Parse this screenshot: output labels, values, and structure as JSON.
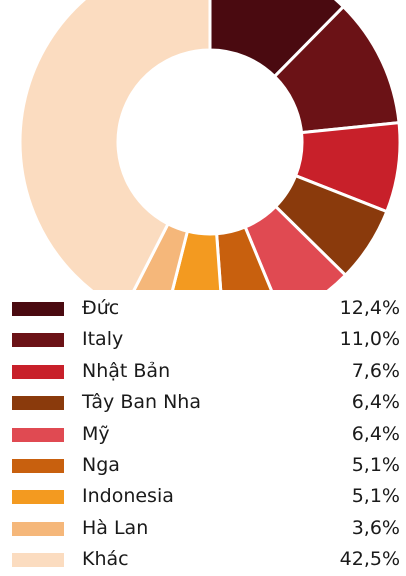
{
  "chart_data": {
    "type": "pie",
    "variant": "donut",
    "title": "",
    "legend_position": "bottom",
    "slices": [
      {
        "label": "Đức",
        "value": 12.4,
        "value_label": "12,4%",
        "color": "#4a0a10"
      },
      {
        "label": "Italy",
        "value": 11.0,
        "value_label": "11,0%",
        "color": "#6b1216"
      },
      {
        "label": "Nhật Bản",
        "value": 7.6,
        "value_label": "7,6%",
        "color": "#c8202a"
      },
      {
        "label": "Tây Ban Nha",
        "value": 6.4,
        "value_label": "6,4%",
        "color": "#8a3a0c"
      },
      {
        "label": "Mỹ",
        "value": 6.4,
        "value_label": "6,4%",
        "color": "#e04a52"
      },
      {
        "label": "Nga",
        "value": 5.1,
        "value_label": "5,1%",
        "color": "#c8600e"
      },
      {
        "label": "Indonesia",
        "value": 5.1,
        "value_label": "5,1%",
        "color": "#f39a20"
      },
      {
        "label": "Hà Lan",
        "value": 3.6,
        "value_label": "3,6%",
        "color": "#f5b77a"
      },
      {
        "label": "Khác",
        "value": 42.5,
        "value_label": "42,5%",
        "color": "#fbdcc0"
      }
    ]
  }
}
